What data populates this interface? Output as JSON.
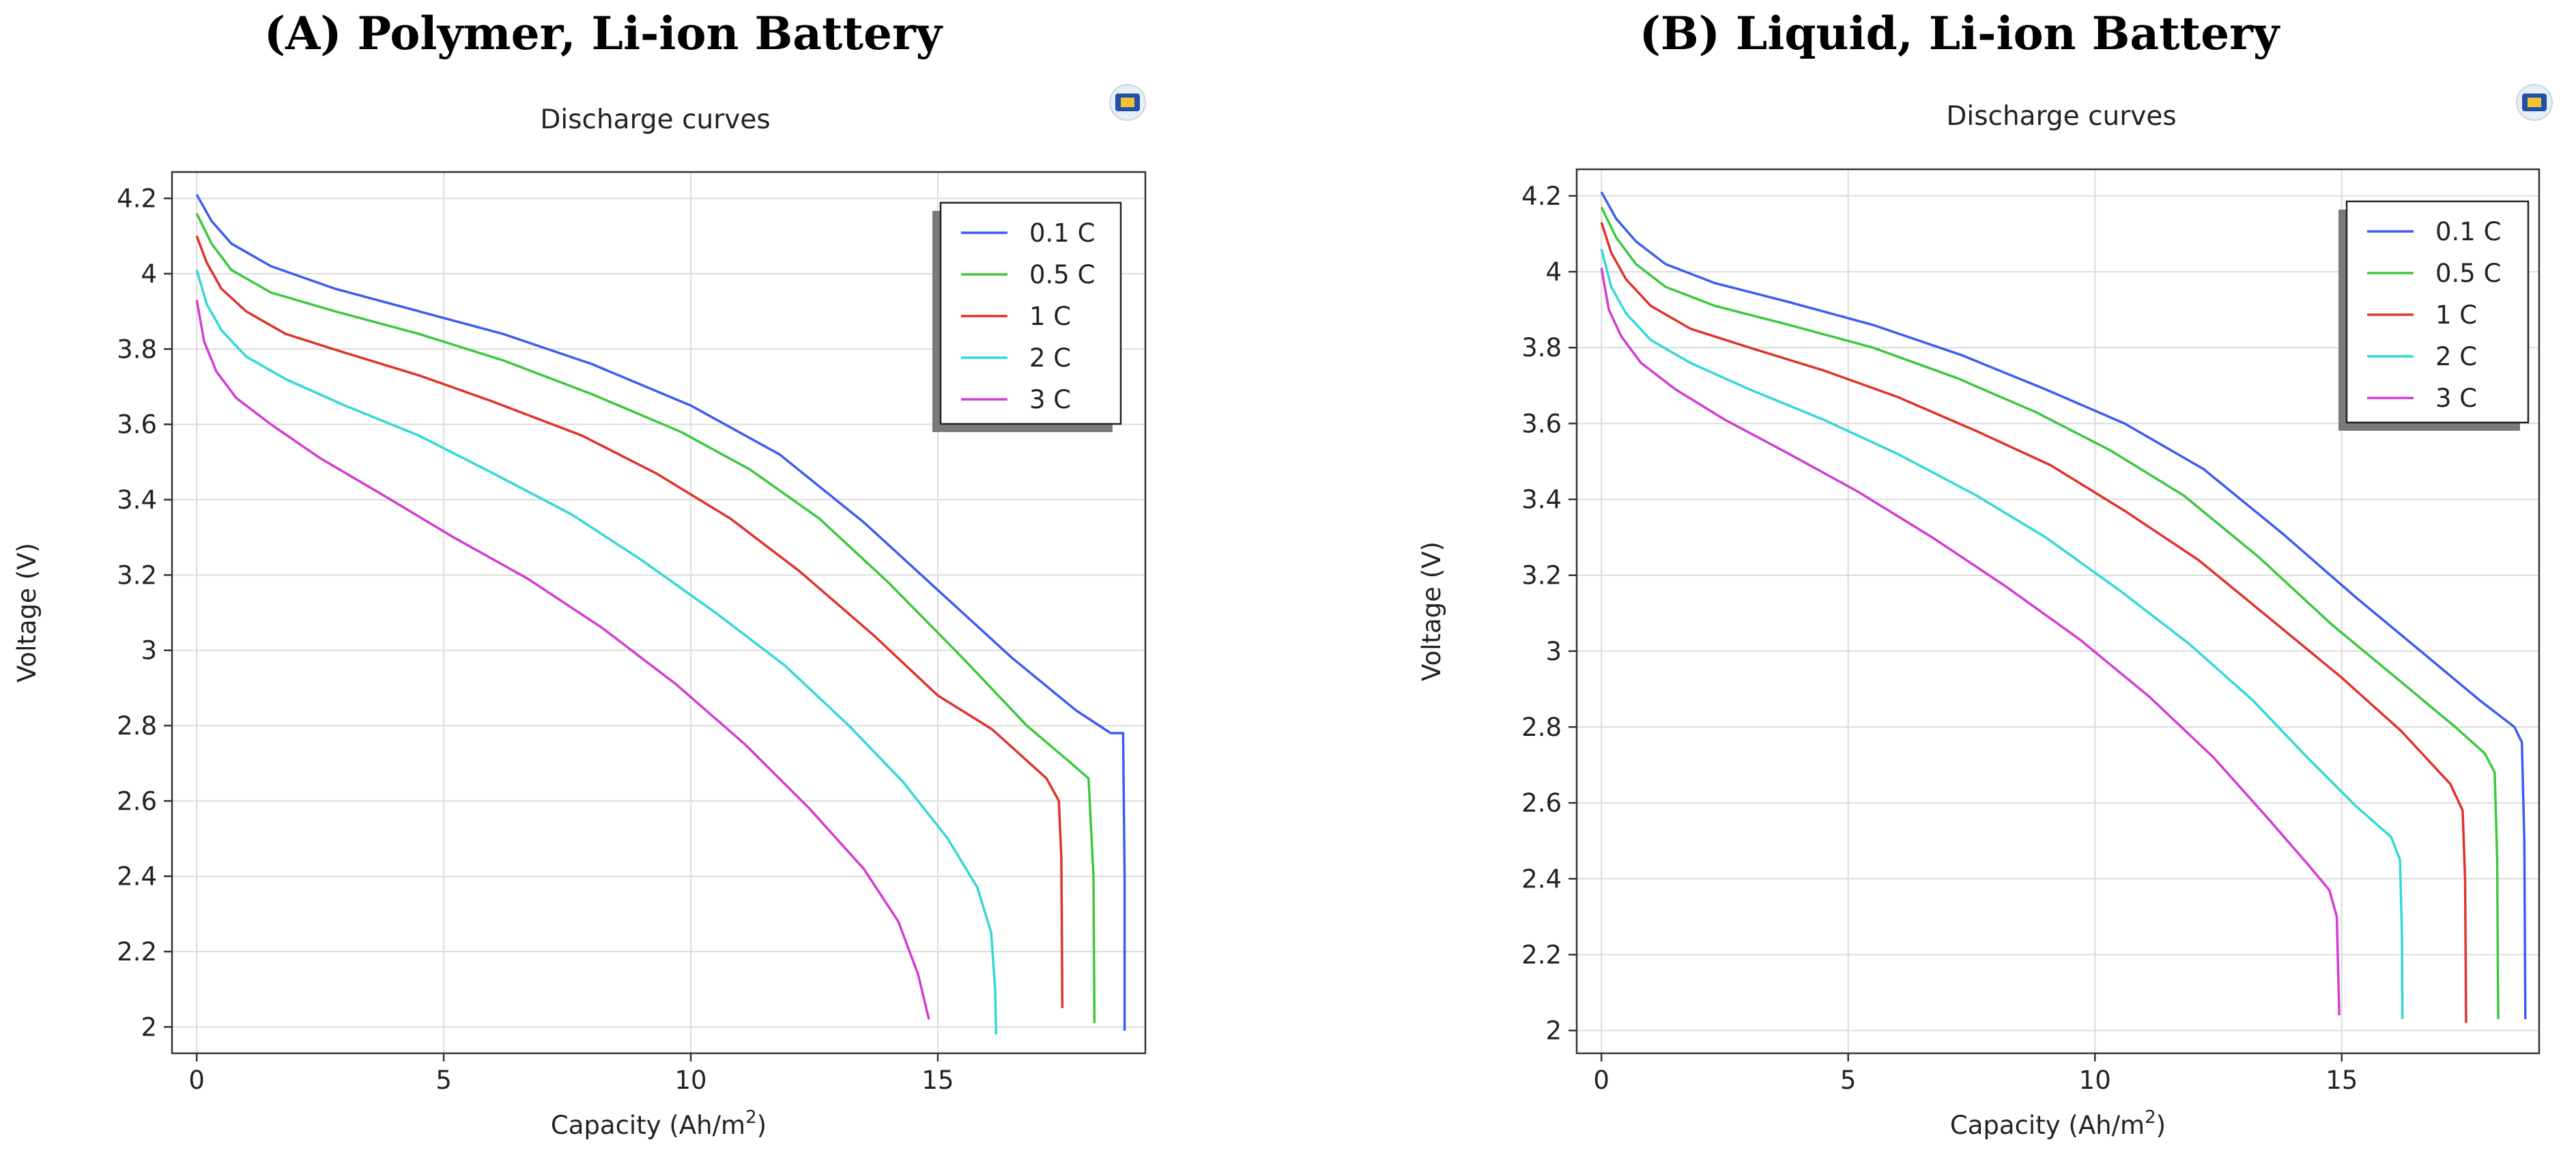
{
  "chart_data": [
    {
      "type": "line",
      "panel_title": "(A) Polymer, Li-ion Battery",
      "title": "Discharge curves",
      "xlabel": "Capacity (Ah/m",
      "xlabel_sup": "2",
      "xlabel_close": ")",
      "ylabel": "Voltage (V)",
      "xlim": [
        -0.5,
        19.2
      ],
      "ylim": [
        1.93,
        4.27
      ],
      "xticks": [
        0,
        5,
        10,
        15
      ],
      "xtick_labels": [
        "0",
        "5",
        "10",
        "15"
      ],
      "yticks": [
        2,
        2.2,
        2.4,
        2.6,
        2.8,
        3,
        3.2,
        3.4,
        3.6,
        3.8,
        4,
        4.2
      ],
      "ytick_labels": [
        "2",
        "2.2",
        "2.4",
        "2.6",
        "2.8",
        "3",
        "3.2",
        "3.4",
        "3.6",
        "3.8",
        "4",
        "4.2"
      ],
      "grid": true,
      "legend_position": "top-right",
      "series": [
        {
          "name": "0.1 C",
          "color": "#3c5cf0",
          "x": [
            0,
            0.3,
            0.7,
            1.5,
            2.8,
            4.5,
            6.2,
            8,
            10,
            11.8,
            13.5,
            15,
            16.5,
            17.8,
            18.5,
            18.75,
            18.78,
            18.78
          ],
          "y": [
            4.21,
            4.14,
            4.08,
            4.02,
            3.96,
            3.9,
            3.84,
            3.76,
            3.65,
            3.52,
            3.34,
            3.16,
            2.98,
            2.84,
            2.78,
            2.78,
            2.4,
            1.99
          ]
        },
        {
          "name": "0.5 C",
          "color": "#3cc83c",
          "x": [
            0,
            0.3,
            0.7,
            1.5,
            2.8,
            4.5,
            6.2,
            8,
            9.8,
            11.2,
            12.6,
            14,
            15.5,
            16.8,
            17.7,
            18.05,
            18.15,
            18.17
          ],
          "y": [
            4.16,
            4.08,
            4.01,
            3.95,
            3.9,
            3.84,
            3.77,
            3.68,
            3.58,
            3.48,
            3.35,
            3.18,
            2.98,
            2.8,
            2.7,
            2.66,
            2.4,
            2.01
          ]
        },
        {
          "name": "1 C",
          "color": "#e0322a",
          "x": [
            0,
            0.2,
            0.5,
            1,
            1.8,
            3,
            4.5,
            6,
            7.8,
            9.3,
            10.8,
            12.2,
            13.7,
            15,
            16.1,
            17.2,
            17.45,
            17.5,
            17.52
          ],
          "y": [
            4.1,
            4.03,
            3.96,
            3.9,
            3.84,
            3.79,
            3.73,
            3.66,
            3.57,
            3.47,
            3.35,
            3.21,
            3.04,
            2.88,
            2.79,
            2.66,
            2.6,
            2.45,
            2.05
          ]
        },
        {
          "name": "2 C",
          "color": "#32d8d8",
          "x": [
            0,
            0.2,
            0.5,
            1,
            1.8,
            3,
            4.5,
            6,
            7.6,
            9,
            10.5,
            11.9,
            13.2,
            14.3,
            15.2,
            15.8,
            16.08,
            16.16,
            16.18
          ],
          "y": [
            4.01,
            3.92,
            3.85,
            3.78,
            3.72,
            3.65,
            3.57,
            3.47,
            3.36,
            3.24,
            3.1,
            2.96,
            2.8,
            2.65,
            2.5,
            2.37,
            2.25,
            2.1,
            1.98
          ]
        },
        {
          "name": "3 C",
          "color": "#d23cd2",
          "x": [
            0,
            0.15,
            0.4,
            0.8,
            1.5,
            2.5,
            3.8,
            5.2,
            6.7,
            8.2,
            9.7,
            11.1,
            12.4,
            13.5,
            14.2,
            14.6,
            14.82
          ],
          "y": [
            3.93,
            3.82,
            3.74,
            3.67,
            3.6,
            3.51,
            3.41,
            3.3,
            3.19,
            3.06,
            2.91,
            2.75,
            2.58,
            2.42,
            2.28,
            2.14,
            2.02
          ]
        }
      ]
    },
    {
      "type": "line",
      "panel_title": "(B) Liquid, Li-ion Battery",
      "title": "Discharge curves",
      "xlabel": "Capacity (Ah/m",
      "xlabel_sup": "2",
      "xlabel_close": ")",
      "ylabel": "Voltage (V)",
      "xlim": [
        -0.5,
        19.0
      ],
      "ylim": [
        1.94,
        4.27
      ],
      "xticks": [
        0,
        5,
        10,
        15
      ],
      "xtick_labels": [
        "0",
        "5",
        "10",
        "15"
      ],
      "yticks": [
        2,
        2.2,
        2.4,
        2.6,
        2.8,
        3,
        3.2,
        3.4,
        3.6,
        3.8,
        4,
        4.2
      ],
      "ytick_labels": [
        "2",
        "2.2",
        "2.4",
        "2.6",
        "2.8",
        "3",
        "3.2",
        "3.4",
        "3.6",
        "3.8",
        "4",
        "4.2"
      ],
      "grid": true,
      "legend_position": "top-right",
      "series": [
        {
          "name": "0.1 C",
          "color": "#3c5cf0",
          "x": [
            0,
            0.3,
            0.7,
            1.3,
            2.3,
            3.8,
            5.5,
            7.3,
            9,
            10.6,
            12.2,
            13.8,
            15.3,
            16.6,
            17.8,
            18.5,
            18.65,
            18.7,
            18.72
          ],
          "y": [
            4.21,
            4.14,
            4.08,
            4.02,
            3.97,
            3.92,
            3.86,
            3.78,
            3.69,
            3.6,
            3.48,
            3.31,
            3.14,
            3.0,
            2.87,
            2.8,
            2.76,
            2.5,
            2.03
          ]
        },
        {
          "name": "0.5 C",
          "color": "#3cc83c",
          "x": [
            0,
            0.3,
            0.7,
            1.3,
            2.3,
            3.8,
            5.5,
            7.2,
            8.8,
            10.3,
            11.8,
            13.3,
            14.8,
            16.1,
            17.3,
            17.9,
            18.1,
            18.15,
            18.17
          ],
          "y": [
            4.17,
            4.09,
            4.02,
            3.96,
            3.91,
            3.86,
            3.8,
            3.72,
            3.63,
            3.53,
            3.41,
            3.25,
            3.07,
            2.93,
            2.8,
            2.73,
            2.68,
            2.45,
            2.03
          ]
        },
        {
          "name": "1 C",
          "color": "#e0322a",
          "x": [
            0,
            0.2,
            0.5,
            1,
            1.8,
            3,
            4.5,
            6,
            7.6,
            9.1,
            10.6,
            12.1,
            13.6,
            15,
            16.2,
            17.2,
            17.45,
            17.5,
            17.52
          ],
          "y": [
            4.13,
            4.05,
            3.98,
            3.91,
            3.85,
            3.8,
            3.74,
            3.67,
            3.58,
            3.49,
            3.37,
            3.24,
            3.08,
            2.93,
            2.79,
            2.65,
            2.58,
            2.4,
            2.02
          ]
        },
        {
          "name": "2 C",
          "color": "#32d8d8",
          "x": [
            0,
            0.2,
            0.5,
            1,
            1.8,
            3,
            4.5,
            6,
            7.6,
            9,
            10.5,
            11.9,
            13.2,
            14.3,
            15.3,
            16,
            16.18,
            16.22,
            16.23
          ],
          "y": [
            4.06,
            3.96,
            3.89,
            3.82,
            3.76,
            3.69,
            3.61,
            3.52,
            3.41,
            3.3,
            3.16,
            3.02,
            2.87,
            2.72,
            2.59,
            2.51,
            2.45,
            2.25,
            2.03
          ]
        },
        {
          "name": "3 C",
          "color": "#d23cd2",
          "x": [
            0,
            0.15,
            0.4,
            0.8,
            1.5,
            2.5,
            3.8,
            5.2,
            6.7,
            8.2,
            9.7,
            11.1,
            12.4,
            13.5,
            14.3,
            14.75,
            14.9,
            14.93,
            14.95
          ],
          "y": [
            4.01,
            3.9,
            3.83,
            3.76,
            3.69,
            3.61,
            3.52,
            3.42,
            3.3,
            3.17,
            3.03,
            2.88,
            2.72,
            2.56,
            2.44,
            2.37,
            2.3,
            2.15,
            2.04
          ]
        }
      ]
    }
  ]
}
